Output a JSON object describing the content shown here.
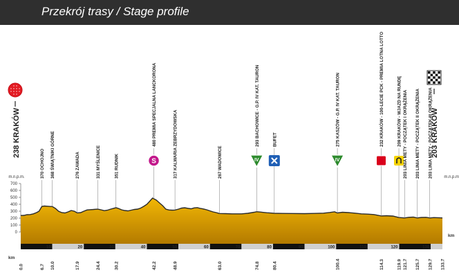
{
  "header": {
    "title": "Przekrój trasy / Stage profile"
  },
  "chart_data": {
    "type": "area",
    "title": "Przekrój trasy / Stage profile",
    "ylabel": "m.n.p.m.",
    "xlabel": "km",
    "ylim": [
      0,
      700
    ],
    "xlim": [
      0,
      133.7
    ],
    "y_ticks": [
      0,
      100,
      200,
      300,
      400,
      500,
      600,
      700
    ],
    "band_ticks": [
      10,
      20,
      30,
      40,
      50,
      60,
      70,
      80,
      90,
      100,
      110,
      120,
      130
    ],
    "start_label": "238 KRAKÓW",
    "finish_label": "203 KRAKÓW",
    "profile": [
      [
        0,
        238
      ],
      [
        1,
        240
      ],
      [
        2,
        250
      ],
      [
        3,
        252
      ],
      [
        4,
        262
      ],
      [
        5,
        280
      ],
      [
        5.8,
        300
      ],
      [
        6.7,
        370
      ],
      [
        7.5,
        375
      ],
      [
        8.5,
        372
      ],
      [
        9.5,
        368
      ],
      [
        10,
        368
      ],
      [
        11,
        340
      ],
      [
        12,
        300
      ],
      [
        13,
        280
      ],
      [
        14,
        275
      ],
      [
        15,
        290
      ],
      [
        16,
        310
      ],
      [
        17,
        300
      ],
      [
        17.9,
        276
      ],
      [
        19,
        280
      ],
      [
        20,
        300
      ],
      [
        21,
        318
      ],
      [
        22,
        322
      ],
      [
        23,
        325
      ],
      [
        24.4,
        331
      ],
      [
        25.5,
        320
      ],
      [
        26.5,
        308
      ],
      [
        27.5,
        315
      ],
      [
        28.5,
        330
      ],
      [
        30.2,
        351
      ],
      [
        31,
        340
      ],
      [
        32,
        320
      ],
      [
        33,
        310
      ],
      [
        34,
        305
      ],
      [
        35,
        315
      ],
      [
        36,
        325
      ],
      [
        37,
        330
      ],
      [
        38,
        345
      ],
      [
        39,
        370
      ],
      [
        40,
        400
      ],
      [
        41,
        450
      ],
      [
        41.8,
        490
      ],
      [
        42.2,
        480
      ],
      [
        43,
        460
      ],
      [
        44,
        420
      ],
      [
        45,
        380
      ],
      [
        46,
        330
      ],
      [
        47,
        318
      ],
      [
        48,
        315
      ],
      [
        48.9,
        317
      ],
      [
        50,
        330
      ],
      [
        51,
        345
      ],
      [
        52,
        350
      ],
      [
        53,
        342
      ],
      [
        54,
        335
      ],
      [
        55,
        348
      ],
      [
        56,
        352
      ],
      [
        57,
        340
      ],
      [
        58,
        332
      ],
      [
        59,
        320
      ],
      [
        60,
        305
      ],
      [
        61,
        290
      ],
      [
        62,
        280
      ],
      [
        63,
        267
      ],
      [
        65,
        265
      ],
      [
        67,
        262
      ],
      [
        70,
        262
      ],
      [
        72,
        270
      ],
      [
        74,
        285
      ],
      [
        74.8,
        293
      ],
      [
        76,
        288
      ],
      [
        78,
        278
      ],
      [
        80,
        272
      ],
      [
        80.4,
        270
      ],
      [
        83,
        268
      ],
      [
        86,
        267
      ],
      [
        90,
        265
      ],
      [
        93,
        268
      ],
      [
        96,
        272
      ],
      [
        98,
        282
      ],
      [
        99.5,
        292
      ],
      [
        100.4,
        275
      ],
      [
        102,
        285
      ],
      [
        104,
        280
      ],
      [
        106,
        272
      ],
      [
        108,
        262
      ],
      [
        110,
        258
      ],
      [
        112,
        252
      ],
      [
        114.3,
        232
      ],
      [
        116,
        235
      ],
      [
        118,
        230
      ],
      [
        119.9,
        209
      ],
      [
        121.7,
        203
      ],
      [
        123,
        212
      ],
      [
        124.5,
        215
      ],
      [
        125.7,
        203
      ],
      [
        127,
        210
      ],
      [
        128.5,
        212
      ],
      [
        129.7,
        203
      ],
      [
        131,
        208
      ],
      [
        132.5,
        206
      ],
      [
        133.7,
        203
      ]
    ],
    "km_marks": [
      {
        "km": 0,
        "label": "0.0"
      },
      {
        "km": 6.7,
        "label": "6.7"
      },
      {
        "km": 10,
        "label": "10.0"
      },
      {
        "km": 17.9,
        "label": "17.9"
      },
      {
        "km": 24.4,
        "label": "24.4"
      },
      {
        "km": 30.2,
        "label": "30.2"
      },
      {
        "km": 42.2,
        "label": "42.2"
      },
      {
        "km": 48.9,
        "label": "48.9"
      },
      {
        "km": 63.0,
        "label": "63.0"
      },
      {
        "km": 74.8,
        "label": "74.8"
      },
      {
        "km": 80.4,
        "label": "80.4"
      },
      {
        "km": 100.4,
        "label": "100.4"
      },
      {
        "km": 114.3,
        "label": "114.3"
      },
      {
        "km": 119.9,
        "label": "119.9"
      },
      {
        "km": 121.7,
        "label": "121.7"
      },
      {
        "km": 125.7,
        "label": "125.7"
      },
      {
        "km": 129.7,
        "label": "129.7"
      },
      {
        "km": 133.7,
        "label": "133.7"
      }
    ],
    "waypoints": [
      {
        "km": 6.7,
        "label": "370 OCHOJNO"
      },
      {
        "km": 10.0,
        "label": "368 ŚWIĄTNIKI GÓRNE"
      },
      {
        "km": 17.9,
        "label": "276 ZAWADA"
      },
      {
        "km": 24.4,
        "label": "331 MYŚLENICE"
      },
      {
        "km": 30.2,
        "label": "351 RUDNIK"
      },
      {
        "km": 42.2,
        "label": "480 PREMIA SPECJALNA LANCKORONA",
        "icon": "sprint"
      },
      {
        "km": 48.9,
        "label": "317 KALWARIA ZEBRZYDOWSKA"
      },
      {
        "km": 63.0,
        "label": "267 WADOWICE"
      },
      {
        "km": 74.8,
        "label": "293 BACHOWICE - G.P. IV KAT. TAURON",
        "icon": "kom"
      },
      {
        "km": 80.4,
        "label": "BUFET",
        "icon": "feed"
      },
      {
        "km": 100.4,
        "label": "275 KASZÓW - G.P. IV KAT. TAURON",
        "icon": "kom"
      },
      {
        "km": 114.3,
        "label": "232 KRAKÓW - 100-LECIE PCK - PREMIA LOTNA LOTTO",
        "icon": "bonus"
      },
      {
        "km": 119.9,
        "label": "209 KRAKÓW - WJAZD NA RUNDĘ",
        "icon": "circuit"
      },
      {
        "km": 121.7,
        "label": "203 LINIA METY - POCZĄTEK I OKRĄŻENIA"
      },
      {
        "km": 125.7,
        "label": "203 LINIA METY - POCZĄTEK II OKRĄŻENIA"
      },
      {
        "km": 129.7,
        "label": "203 LINIA METY - POCZĄTEK III OKRĄŻENIA"
      }
    ],
    "icon_text": {
      "kom": "IV",
      "sprint": "S"
    },
    "colors": {
      "profile_top": "#f2b705",
      "profile_bottom": "#b37a00",
      "profile_line": "#2a2a2a",
      "band_gray": "#cfcfcf",
      "band_black": "#111111",
      "start_red": "#e31b23",
      "sprint_magenta": "#c2188b",
      "kom_green": "#2e8b2e",
      "feed_blue": "#1f5fb5",
      "bonus_red": "#d9001b",
      "circuit_yellow": "#f5d300"
    }
  }
}
